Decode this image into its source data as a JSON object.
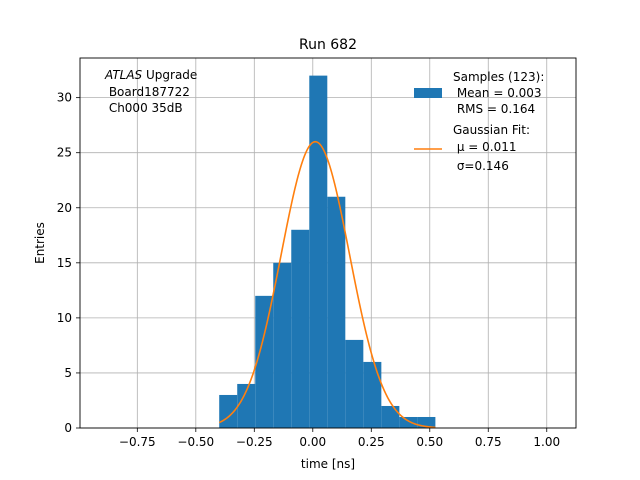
{
  "chart_data": {
    "type": "bar",
    "title": "Run 682",
    "xlabel": "time [ns]",
    "ylabel": "Entries",
    "xlim": [
      -0.995,
      1.125
    ],
    "ylim": [
      0,
      33.6
    ],
    "grid": true,
    "x_ticks": [
      -0.75,
      -0.5,
      -0.25,
      0.0,
      0.25,
      0.5,
      0.75,
      1.0
    ],
    "x_tick_labels": [
      "−0.75",
      "−0.50",
      "−0.25",
      "0.00",
      "0.25",
      "0.50",
      "0.75",
      "1.00"
    ],
    "y_ticks": [
      0,
      5,
      10,
      15,
      20,
      25,
      30
    ],
    "y_tick_labels": [
      "0",
      "5",
      "10",
      "15",
      "20",
      "25",
      "30"
    ],
    "annotation": {
      "experiment": "ATLAS",
      "experiment_suffix": " Upgrade",
      "board": " Board187722",
      "channel": " Ch000 35dB"
    },
    "legend_position": "top-right",
    "histogram": {
      "name_lines": [
        "Samples (123):",
        " Mean = 0.003",
        " RMS = 0.164"
      ],
      "color": "#1f77b4",
      "bin_edges": [
        -0.4,
        -0.323,
        -0.246,
        -0.169,
        -0.092,
        -0.015,
        0.062,
        0.139,
        0.216,
        0.293,
        0.37,
        0.447,
        0.524
      ],
      "counts": [
        3,
        4,
        12,
        15,
        18,
        32,
        21,
        8,
        6,
        2,
        1,
        1
      ]
    },
    "fit": {
      "name_lines": [
        "Gaussian Fit:",
        " μ = 0.011",
        " σ=0.146"
      ],
      "color": "#ff7f0e",
      "amplitude": 26,
      "mu": 0.011,
      "sigma": 0.146,
      "x_range": [
        -0.4,
        0.524
      ]
    }
  }
}
